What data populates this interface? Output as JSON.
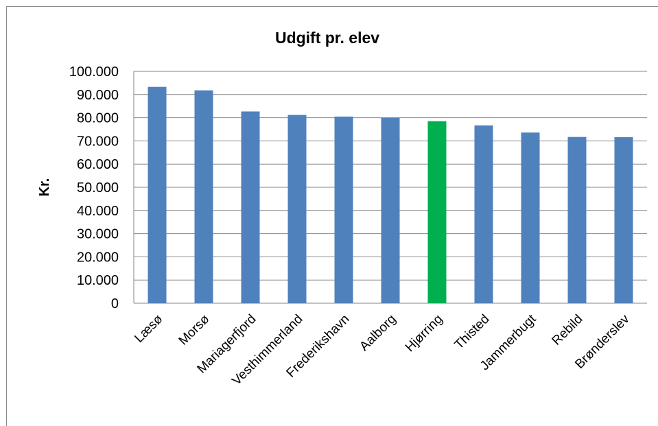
{
  "chart_data": {
    "type": "bar",
    "title": "Udgift pr. elev",
    "xlabel": "",
    "ylabel": "Kr.",
    "ylim": [
      0,
      100000
    ],
    "yticks": [
      0,
      10000,
      20000,
      30000,
      40000,
      50000,
      60000,
      70000,
      80000,
      90000,
      100000
    ],
    "ytick_labels": [
      "0",
      "10.000",
      "20.000",
      "30.000",
      "40.000",
      "50.000",
      "60.000",
      "70.000",
      "80.000",
      "90.000",
      "100.000"
    ],
    "categories": [
      "Læsø",
      "Morsø",
      "Mariagerfjord",
      "Vesthimmerland",
      "Frederikshavn",
      "Aalborg",
      "Hjørring",
      "Thisted",
      "Jammerbugt",
      "Rebild",
      "Brønderslev"
    ],
    "values": [
      93300,
      91800,
      82700,
      81200,
      80500,
      80000,
      78500,
      76700,
      73600,
      71700,
      71600
    ],
    "bar_colors": [
      "#4f81bd",
      "#4f81bd",
      "#4f81bd",
      "#4f81bd",
      "#4f81bd",
      "#4f81bd",
      "#00b050",
      "#4f81bd",
      "#4f81bd",
      "#4f81bd",
      "#4f81bd"
    ],
    "grid": true,
    "gridline_color": "#868686",
    "legend": "none"
  }
}
